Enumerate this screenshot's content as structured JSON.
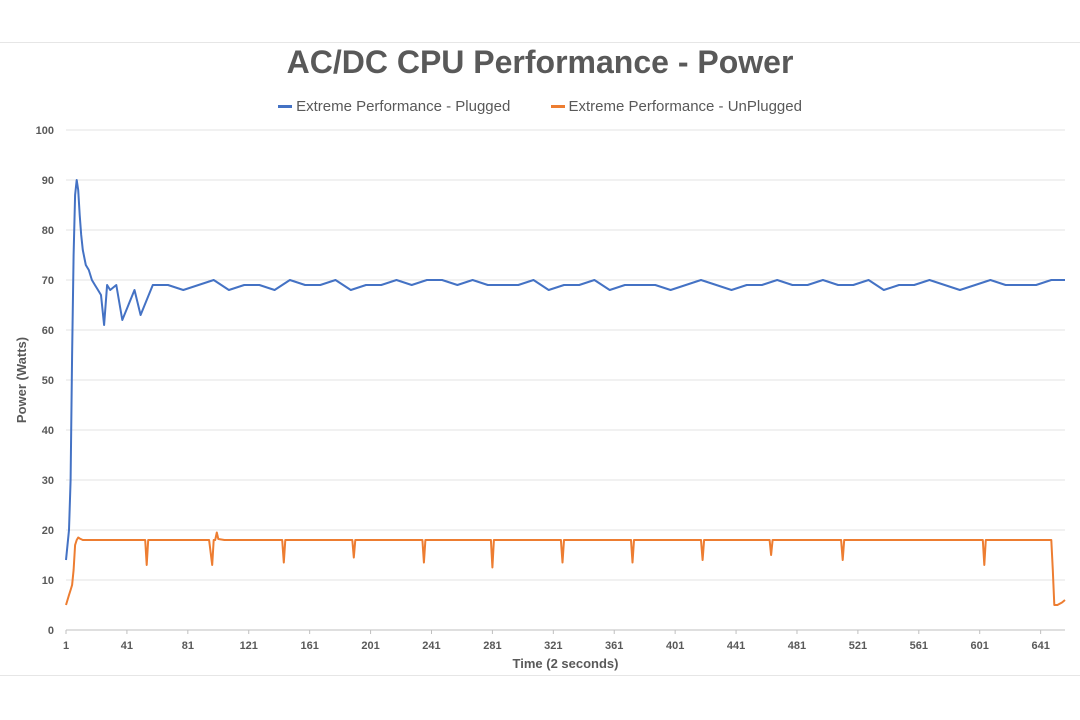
{
  "chart_data": {
    "type": "line",
    "title": "AC/DC CPU Performance - Power",
    "xlabel": "Time (2 seconds)",
    "ylabel": "Power (Watts)",
    "ylim": [
      0,
      100
    ],
    "y_ticks": [
      0,
      10,
      20,
      30,
      40,
      50,
      60,
      70,
      80,
      90,
      100
    ],
    "xlim": [
      1,
      657
    ],
    "x_ticks": [
      1,
      41,
      81,
      121,
      161,
      201,
      241,
      281,
      321,
      361,
      401,
      441,
      481,
      521,
      561,
      601,
      641
    ],
    "grid": true,
    "legend_position": "top",
    "series": [
      {
        "name": "Extreme Performance - Plugged",
        "color": "#4472C4",
        "x": [
          1,
          3,
          4,
          5,
          6,
          7,
          8,
          9,
          10,
          11,
          12,
          14,
          16,
          18,
          20,
          22,
          24,
          26,
          28,
          30,
          34,
          38,
          46,
          50,
          58,
          68,
          78,
          88,
          98,
          108,
          118,
          128,
          138,
          148,
          158,
          168,
          178,
          188,
          198,
          208,
          218,
          228,
          238,
          248,
          258,
          268,
          278,
          288,
          298,
          308,
          318,
          328,
          338,
          348,
          358,
          368,
          378,
          388,
          398,
          408,
          418,
          428,
          438,
          448,
          458,
          468,
          478,
          488,
          498,
          508,
          518,
          528,
          538,
          548,
          558,
          568,
          578,
          588,
          598,
          608,
          618,
          628,
          638,
          648,
          657
        ],
        "values": [
          14,
          20,
          30,
          55,
          75,
          87,
          90,
          88,
          83,
          79,
          76,
          73,
          72,
          70,
          69,
          68,
          67,
          61,
          69,
          68,
          69,
          62,
          68,
          63,
          69,
          69,
          68,
          69,
          70,
          68,
          69,
          69,
          68,
          70,
          69,
          69,
          70,
          68,
          69,
          69,
          70,
          69,
          70,
          70,
          69,
          70,
          69,
          69,
          69,
          70,
          68,
          69,
          69,
          70,
          68,
          69,
          69,
          69,
          68,
          69,
          70,
          69,
          68,
          69,
          69,
          70,
          69,
          69,
          70,
          69,
          69,
          70,
          68,
          69,
          69,
          70,
          69,
          68,
          69,
          70,
          69,
          69,
          69,
          70,
          70
        ]
      },
      {
        "name": "Extreme Performance - UnPlugged",
        "color": "#ED7D31",
        "x": [
          1,
          2,
          3,
          4,
          5,
          6,
          7,
          8,
          9,
          10,
          12,
          14,
          16,
          18,
          20,
          25,
          35,
          45,
          53,
          54,
          55,
          65,
          75,
          85,
          95,
          97,
          98,
          99,
          100,
          101,
          105,
          115,
          135,
          143,
          144,
          145,
          165,
          185,
          189,
          190,
          191,
          210,
          230,
          235,
          236,
          237,
          260,
          280,
          281,
          282,
          290,
          320,
          326,
          327,
          328,
          350,
          370,
          372,
          373,
          374,
          395,
          410,
          418,
          419,
          420,
          440,
          460,
          463,
          464,
          465,
          480,
          500,
          510,
          511,
          512,
          530,
          560,
          600,
          603,
          604,
          605,
          630,
          645,
          648,
          649,
          650,
          652,
          655,
          657
        ],
        "values": [
          5,
          6,
          7,
          8,
          9,
          12,
          17,
          18,
          18.5,
          18.3,
          18,
          18,
          18,
          18,
          18,
          18,
          18,
          18,
          18,
          13,
          18,
          18,
          18,
          18,
          18,
          13,
          18,
          18,
          19.5,
          18.2,
          18,
          18,
          18,
          18,
          13.5,
          18,
          18,
          18,
          18,
          14.5,
          18,
          18,
          18,
          18,
          13.5,
          18,
          18,
          18,
          12.5,
          18,
          18,
          18,
          18,
          13.5,
          18,
          18,
          18,
          18,
          13.5,
          18,
          18,
          18,
          18,
          14,
          18,
          18,
          18,
          18,
          15,
          18,
          18,
          18,
          18,
          14,
          18,
          18,
          18,
          18,
          18,
          13,
          18,
          18,
          18,
          18,
          12,
          5,
          5,
          5.5,
          6
        ]
      }
    ]
  }
}
